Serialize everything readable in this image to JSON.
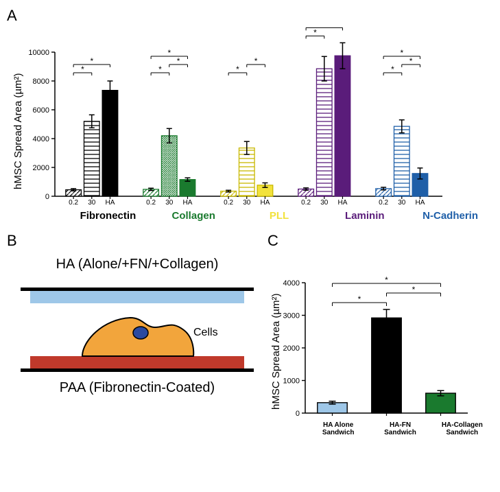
{
  "panel_labels": {
    "A": "A",
    "B": "B",
    "C": "C"
  },
  "panel_A": {
    "type": "bar",
    "ylabel": "hMSC Spread Area (µm²)",
    "ylim": [
      0,
      10000
    ],
    "ytick_step": 2000,
    "yticks": [
      0,
      2000,
      4000,
      6000,
      8000,
      10000
    ],
    "subbar_labels": [
      "0.2",
      "30",
      "HA"
    ],
    "axis_color": "#000000",
    "background": "#ffffff",
    "label_fontsize": 15,
    "tick_fontsize": 11,
    "groups": [
      {
        "name": "Fibronectin",
        "label_color": "#000000",
        "primary": "#000000",
        "bars": [
          {
            "value": 450,
            "error": 80,
            "fill": "#ffffff",
            "hatch": "diag",
            "stroke": "#000000"
          },
          {
            "value": 5200,
            "error": 450,
            "fill": "#ffffff",
            "hatch": "horiz",
            "stroke": "#000000"
          },
          {
            "value": 7350,
            "error": 650,
            "fill": "#000000",
            "hatch": "none",
            "stroke": "#000000"
          }
        ],
        "sig": [
          {
            "from": 0,
            "to": 1,
            "level": 0
          },
          {
            "from": 0,
            "to": 2,
            "level": 1
          }
        ]
      },
      {
        "name": "Collagen",
        "label_color": "#1a7a2e",
        "primary": "#1a7a2e",
        "bars": [
          {
            "value": 480,
            "error": 80,
            "fill": "#ffffff",
            "hatch": "diag",
            "stroke": "#1a7a2e"
          },
          {
            "value": 4200,
            "error": 500,
            "fill": "#ffffff",
            "hatch": "diag2",
            "stroke": "#1a7a2e"
          },
          {
            "value": 1160,
            "error": 120,
            "fill": "#1a7a2e",
            "hatch": "none",
            "stroke": "#1a7a2e"
          }
        ],
        "sig": [
          {
            "from": 0,
            "to": 1,
            "level": 0
          },
          {
            "from": 1,
            "to": 2,
            "level": 1
          },
          {
            "from": 0,
            "to": 2,
            "level": 2
          }
        ]
      },
      {
        "name": "PLL",
        "label_color": "#f2e23c",
        "primary": "#f2e23c",
        "bars": [
          {
            "value": 355,
            "error": 60,
            "fill": "#ffffff",
            "hatch": "diag",
            "stroke": "#c8b800"
          },
          {
            "value": 3350,
            "error": 450,
            "fill": "#ffffff",
            "hatch": "horiz",
            "stroke": "#c8b800",
            "fillsolid": "#fdf7a8"
          },
          {
            "value": 770,
            "error": 160,
            "fill": "#f2e23c",
            "hatch": "none",
            "stroke": "#c8b800"
          }
        ],
        "sig": [
          {
            "from": 0,
            "to": 1,
            "level": 0
          },
          {
            "from": 1,
            "to": 2,
            "level": 1
          }
        ]
      },
      {
        "name": "Laminin",
        "label_color": "#5a1c7a",
        "primary": "#5a1c7a",
        "bars": [
          {
            "value": 500,
            "error": 80,
            "fill": "#ffffff",
            "hatch": "diag",
            "stroke": "#5a1c7a"
          },
          {
            "value": 8850,
            "error": 850,
            "fill": "#ffffff",
            "hatch": "horiz",
            "stroke": "#5a1c7a",
            "fillsolid": "#e8d5ef"
          },
          {
            "value": 9750,
            "error": 900,
            "fill": "#5a1c7a",
            "hatch": "none",
            "stroke": "#5a1c7a"
          }
        ],
        "sig": [
          {
            "from": 0,
            "to": 1,
            "level": 0
          },
          {
            "from": 0,
            "to": 2,
            "level": 1
          }
        ]
      },
      {
        "name": "N-Cadherin",
        "label_color": "#1f5fa8",
        "primary": "#1f5fa8",
        "bars": [
          {
            "value": 530,
            "error": 90,
            "fill": "#ffffff",
            "hatch": "diag",
            "stroke": "#1f5fa8",
            "fillsolid": "#dbe9f7"
          },
          {
            "value": 4850,
            "error": 450,
            "fill": "#ffffff",
            "hatch": "horiz",
            "stroke": "#1f5fa8",
            "fillsolid": "#dbe9f7"
          },
          {
            "value": 1580,
            "error": 380,
            "fill": "#1f5fa8",
            "hatch": "none",
            "stroke": "#1f5fa8"
          }
        ],
        "sig": [
          {
            "from": 0,
            "to": 1,
            "level": 0
          },
          {
            "from": 1,
            "to": 2,
            "level": 1
          },
          {
            "from": 0,
            "to": 2,
            "level": 2
          }
        ]
      }
    ]
  },
  "panel_B": {
    "type": "infographic",
    "top_label": "HA (Alone/+FN/+Collagen)",
    "bottom_label": "PAA (Fibronectin-Coated)",
    "cell_label": "Cells",
    "top_layer_color": "#9ec7e8",
    "bottom_layer_color": "#c0392b",
    "line_color": "#000000",
    "cell_fill": "#f2a53c",
    "cell_stroke": "#000000",
    "nucleus_fill": "#2b4aa0",
    "label_fontsize": 20
  },
  "panel_C": {
    "type": "bar",
    "ylabel": "hMSC Spread Area (µm²)",
    "ylim": [
      0,
      4000
    ],
    "ytick_step": 1000,
    "yticks": [
      0,
      1000,
      2000,
      3000,
      4000
    ],
    "categories": [
      "HA Alone\nSandwich",
      "HA-FN\nSandwich",
      "HA-Collagen\nSandwich"
    ],
    "bars": [
      {
        "value": 320,
        "error": 45,
        "fill": "#9ec7e8",
        "stroke": "#000000"
      },
      {
        "value": 2920,
        "error": 260,
        "fill": "#000000",
        "stroke": "#000000"
      },
      {
        "value": 610,
        "error": 80,
        "fill": "#1a7a2e",
        "stroke": "#000000"
      }
    ],
    "sig": [
      {
        "from": 0,
        "to": 1,
        "level": 0
      },
      {
        "from": 1,
        "to": 2,
        "level": 1
      },
      {
        "from": 0,
        "to": 2,
        "level": 2
      }
    ],
    "axis_color": "#000000",
    "tick_fontsize": 11,
    "label_fontsize": 15
  }
}
